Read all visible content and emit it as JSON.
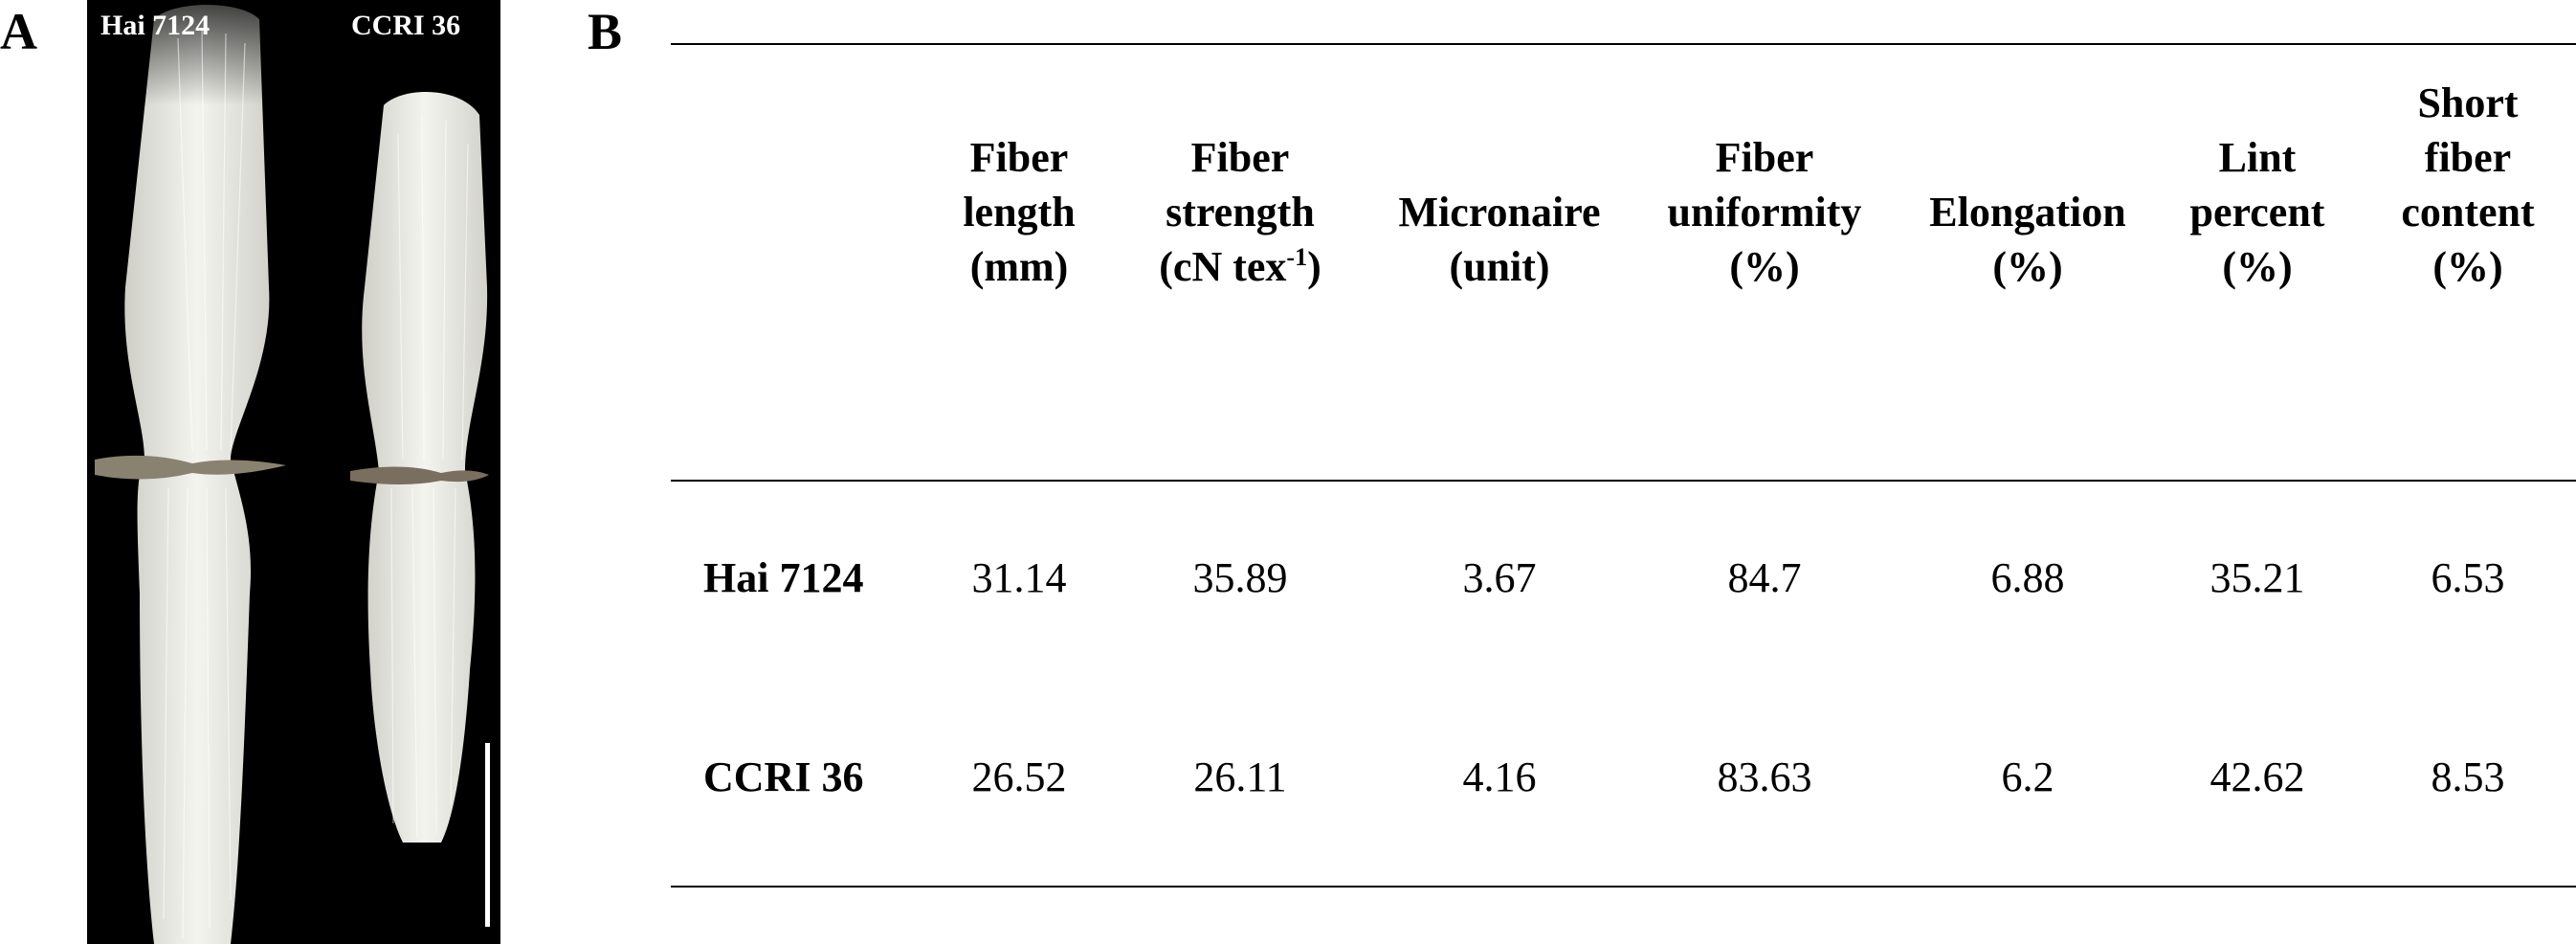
{
  "panel_a": {
    "letter": "A",
    "samples": [
      "Hai 7124",
      "CCRI 36"
    ]
  },
  "panel_b": {
    "letter": "B",
    "columns": [
      {
        "lines": [
          "Fiber",
          "length",
          "(mm)"
        ]
      },
      {
        "lines": [
          "Fiber",
          "strength",
          "(cN tex"
        ],
        "sup": "-1",
        "after_sup": ")"
      },
      {
        "lines": [
          "Micronaire",
          "(unit)"
        ]
      },
      {
        "lines": [
          "Fiber",
          "uniformity",
          "(%)"
        ]
      },
      {
        "lines": [
          "Elongation",
          "(%)"
        ]
      },
      {
        "lines": [
          "Lint",
          "percent",
          "(%)"
        ]
      },
      {
        "lines": [
          "Short",
          "fiber",
          "content",
          "(%)"
        ]
      }
    ],
    "rows": [
      {
        "label": "Hai 7124",
        "values": [
          "31.14",
          "35.89",
          "3.67",
          "84.7",
          "6.88",
          "35.21",
          "6.53"
        ]
      },
      {
        "label": "CCRI 36",
        "values": [
          "26.52",
          "26.11",
          "4.16",
          "83.63",
          "6.2",
          "42.62",
          "8.53"
        ]
      }
    ]
  }
}
